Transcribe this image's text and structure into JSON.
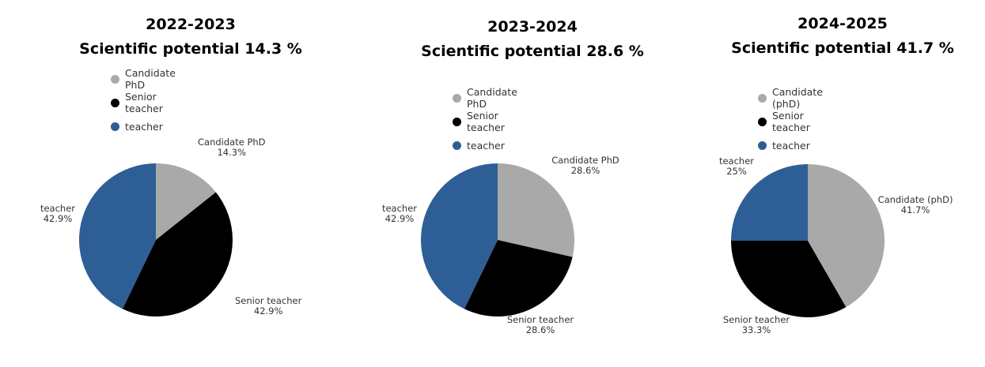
{
  "chart_data": [
    {
      "type": "pie",
      "title_line1": "2022-2023",
      "title_line2": "Scientific potential 14.3 %",
      "colors": [
        "#a9a9a9",
        "#000000",
        "#2e5e96"
      ],
      "legend": [
        "Candidate PhD",
        "Senior teacher",
        "teacher"
      ],
      "slices": [
        {
          "name": "Candidate PhD",
          "value": 14.3,
          "label": "14.3%"
        },
        {
          "name": "Senior teacher",
          "value": 42.9,
          "label": "42.9%"
        },
        {
          "name": "teacher",
          "value": 42.9,
          "label": "42.9%"
        }
      ]
    },
    {
      "type": "pie",
      "title_line1": "2023-2024",
      "title_line2": "Scientific potential 28.6 %",
      "colors": [
        "#a9a9a9",
        "#000000",
        "#2e5e96"
      ],
      "legend": [
        "Candidate PhD",
        "Senior teacher",
        "teacher"
      ],
      "slices": [
        {
          "name": "Candidate PhD",
          "value": 28.6,
          "label": "28.6%"
        },
        {
          "name": "Senior teacher",
          "value": 28.6,
          "label": "28.6%"
        },
        {
          "name": "teacher",
          "value": 42.9,
          "label": "42.9%"
        }
      ]
    },
    {
      "type": "pie",
      "title_line1": "2024-2025",
      "title_line2": "Scientific potential 41.7 %",
      "colors": [
        "#a9a9a9",
        "#000000",
        "#2e5e96"
      ],
      "legend": [
        "Candidate (phD)",
        "Senior teacher",
        "teacher"
      ],
      "slices": [
        {
          "name": "Candidate (phD)",
          "value": 41.7,
          "label": "41.7%"
        },
        {
          "name": "Senior teacher",
          "value": 33.3,
          "label": "33.3%"
        },
        {
          "name": "teacher",
          "value": 25,
          "label": "25%"
        }
      ]
    }
  ]
}
